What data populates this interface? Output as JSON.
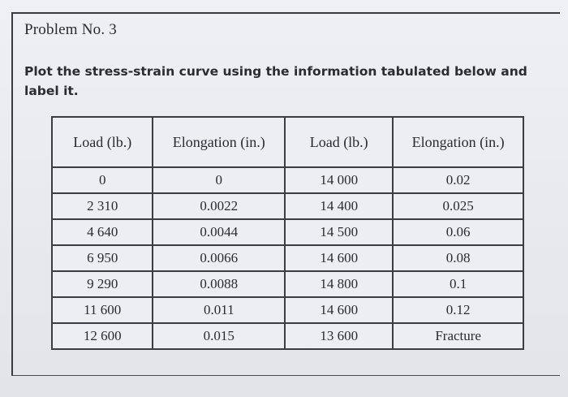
{
  "problem": {
    "title": "Problem No. 3",
    "instruction": "Plot the stress-strain curve using the information tabulated below and label it."
  },
  "table": {
    "headers": [
      "Load (lb.)",
      "Elongation (in.)",
      "Load (lb.)",
      "Elongation (in.)"
    ],
    "rows": [
      [
        "0",
        "0",
        "14 000",
        "0.02"
      ],
      [
        "2 310",
        "0.0022",
        "14 400",
        "0.025"
      ],
      [
        "4 640",
        "0.0044",
        "14 500",
        "0.06"
      ],
      [
        "6 950",
        "0.0066",
        "14 600",
        "0.08"
      ],
      [
        "9 290",
        "0.0088",
        "14 800",
        "0.1"
      ],
      [
        "11 600",
        "0.011",
        "14 600",
        "0.12"
      ],
      [
        "12 600",
        "0.015",
        "13 600",
        "Fracture"
      ]
    ]
  }
}
